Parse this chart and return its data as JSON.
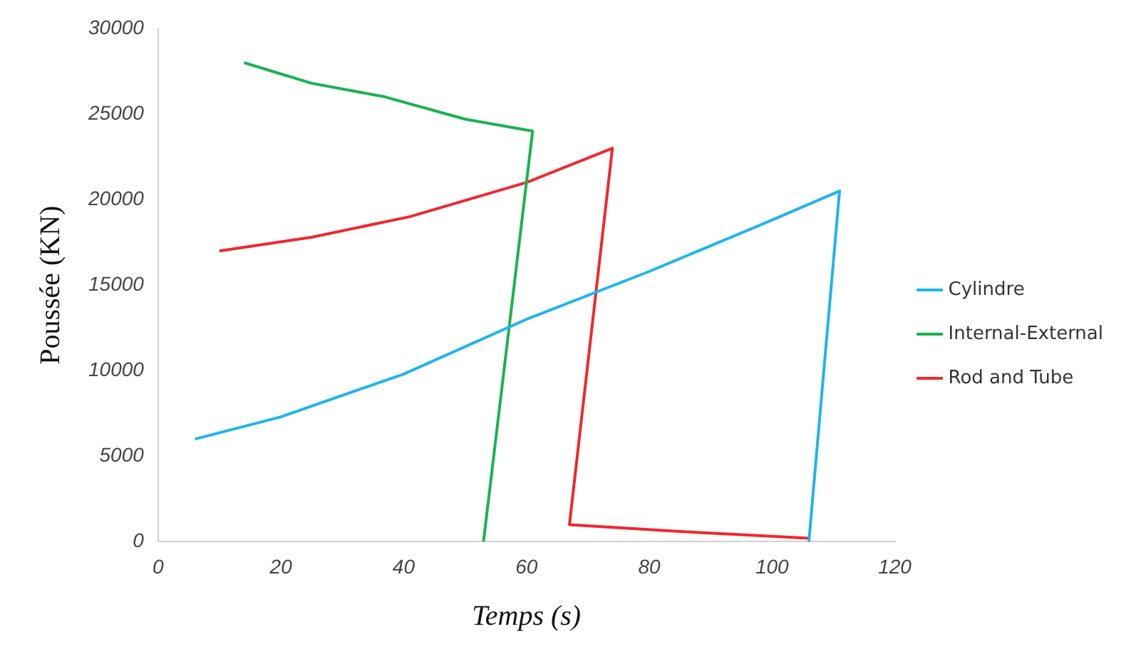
{
  "chart_data": {
    "type": "line",
    "xlabel": "Temps (s)",
    "ylabel": "Poussée (KN)",
    "xlim": [
      0,
      120
    ],
    "xticks": [
      0,
      20,
      40,
      60,
      80,
      100,
      120
    ],
    "ylim": [
      0,
      30000
    ],
    "yticks": [
      0,
      5000,
      10000,
      15000,
      20000,
      25000,
      30000
    ],
    "grid": false,
    "legend": "right",
    "marker": "none",
    "line_style": "solid",
    "series": [
      {
        "name": "Cylindre",
        "color": "#1fb5ec",
        "x": [
          6,
          20,
          40,
          60,
          80,
          100,
          111,
          106
        ],
        "values": [
          6000,
          7300,
          9800,
          13000,
          15800,
          18800,
          20500,
          0
        ]
      },
      {
        "name": "Internal-External",
        "color": "#1ab253",
        "x": [
          14,
          25,
          37,
          50,
          61,
          53
        ],
        "values": [
          28000,
          26800,
          26000,
          24700,
          24000,
          0
        ]
      },
      {
        "name": "Rod and Tube",
        "color": "#f0282d",
        "x": [
          10,
          25,
          41,
          60,
          74,
          67,
          85,
          106
        ],
        "values": [
          17000,
          17800,
          19000,
          21000,
          23000,
          1000,
          600,
          200
        ]
      }
    ]
  }
}
